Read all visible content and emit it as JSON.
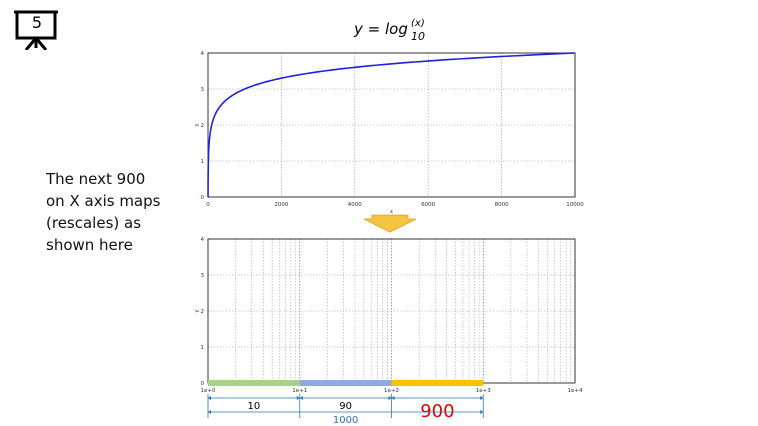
{
  "slide_number": "5",
  "equation": {
    "lhs": "y = log",
    "subscript": "10",
    "superscript": "(x)"
  },
  "side_note": [
    "The next 900",
    "on X axis maps",
    "(rescales) as",
    "shown here"
  ],
  "colors": {
    "curve": "#2020e0",
    "arrow": "#f5c542",
    "seg1": "#a9d18e",
    "seg2": "#8faadc",
    "seg3": "#ffc000",
    "dimension": "#2e75b6",
    "highlight": "#e00000"
  },
  "chart_data": [
    {
      "type": "line",
      "function": "y = log10(x)",
      "x": [
        1,
        10,
        50,
        100,
        200,
        500,
        1000,
        2000,
        3000,
        4000,
        5000,
        6000,
        7000,
        8000,
        9000,
        10000
      ],
      "y": [
        0,
        1,
        1.699,
        2,
        2.301,
        2.699,
        3,
        3.301,
        3.477,
        3.602,
        3.699,
        3.778,
        3.845,
        3.903,
        3.954,
        4
      ],
      "xlim": [
        0,
        10000
      ],
      "ylim": [
        0,
        4
      ],
      "x_ticks": [
        "0",
        "2000",
        "4000",
        "6000",
        "8000",
        "10000"
      ],
      "y_ticks": [
        "0",
        "1",
        "2",
        "3",
        "4"
      ],
      "xlabel": "x",
      "ylabel": "y",
      "grid": true
    },
    {
      "type": "line",
      "x_scale": "log",
      "xlim": [
        1,
        10000
      ],
      "ylim": [
        0,
        4
      ],
      "x_ticks": [
        "1e+0",
        "1e+1",
        "1e+2",
        "1e+3",
        "1e+4"
      ],
      "y_ticks": [
        "0",
        "1",
        "2",
        "3",
        "4"
      ],
      "ylabel": "y",
      "grid": true,
      "segments": [
        {
          "from": 1,
          "to": 10,
          "label": "10"
        },
        {
          "from": 10,
          "to": 100,
          "label": "90"
        },
        {
          "from": 100,
          "to": 1000,
          "label": "900"
        }
      ],
      "total": {
        "from": 1,
        "to": 1000,
        "label": "1000"
      }
    }
  ]
}
